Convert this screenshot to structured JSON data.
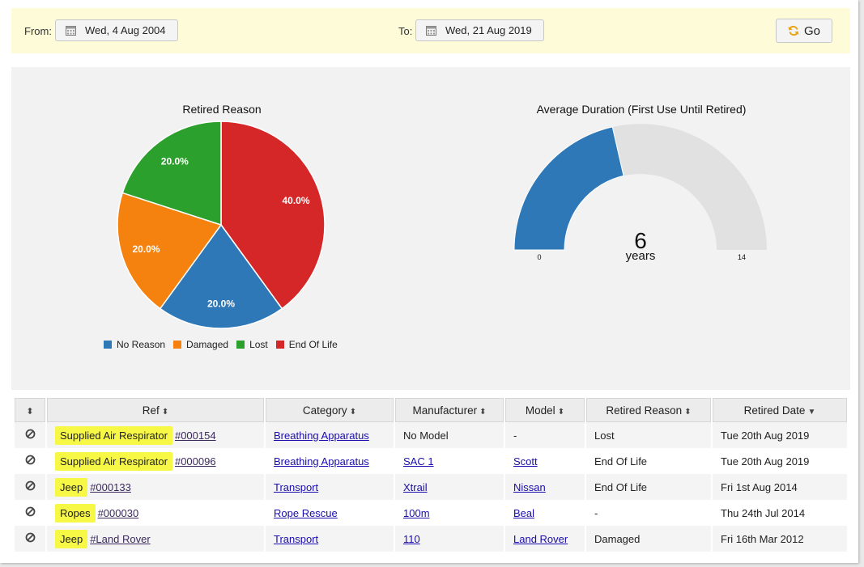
{
  "filter": {
    "from_label": "From:",
    "from_value": "Wed, 4 Aug 2004",
    "to_label": "To:",
    "to_value": "Wed, 21 Aug 2019",
    "go_label": "Go"
  },
  "colors": {
    "no_reason": "#2e78b8",
    "damaged": "#f5820f",
    "lost": "#2ca02c",
    "end_of_life": "#d62728",
    "gauge_fill": "#2e78b8",
    "gauge_bg": "#e1e1e1",
    "highlight": "#f7f745"
  },
  "chart_data": [
    {
      "type": "pie",
      "title": "Retired Reason",
      "categories": [
        "No Reason",
        "Damaged",
        "Lost",
        "End Of Life"
      ],
      "values": [
        20.0,
        20.0,
        20.0,
        40.0
      ],
      "labels": [
        "20.0%",
        "20.0%",
        "20.0%",
        "40.0%"
      ],
      "legend": "bottom"
    },
    {
      "type": "gauge",
      "title": "Average Duration (First Use Until Retired)",
      "value": 6,
      "value_label": "6",
      "unit": "years",
      "min": 0,
      "max": 14,
      "min_label": "0",
      "max_label": "14"
    }
  ],
  "table": {
    "headers": [
      "Ref",
      "Category",
      "Manufacturer",
      "Model",
      "Retired Reason",
      "Retired Date"
    ],
    "rows": [
      {
        "tag": "Supplied Air Respirator",
        "ref": "#000154",
        "category": "Breathing Apparatus",
        "manufacturer": "No Model",
        "model": "-",
        "reason": "Lost",
        "date": "Tue 20th Aug 2019"
      },
      {
        "tag": "Supplied Air Respirator",
        "ref": "#000096",
        "category": "Breathing Apparatus",
        "manufacturer": "SAC 1",
        "model": "Scott",
        "reason": "End Of Life",
        "date": "Tue 20th Aug 2019"
      },
      {
        "tag": "Jeep",
        "ref": "#000133",
        "category": "Transport",
        "manufacturer": "Xtrail",
        "model": "Nissan",
        "reason": "End Of Life",
        "date": "Fri 1st Aug 2014"
      },
      {
        "tag": "Ropes",
        "ref": "#000030",
        "category": "Rope Rescue",
        "manufacturer": "100m",
        "model": "Beal",
        "reason": "-",
        "date": "Thu 24th Jul 2014"
      },
      {
        "tag": "Jeep",
        "ref": "#Land Rover",
        "category": "Transport",
        "manufacturer": "110",
        "model": "Land Rover",
        "reason": "Damaged",
        "date": "Fri 16th Mar 2012"
      }
    ]
  }
}
